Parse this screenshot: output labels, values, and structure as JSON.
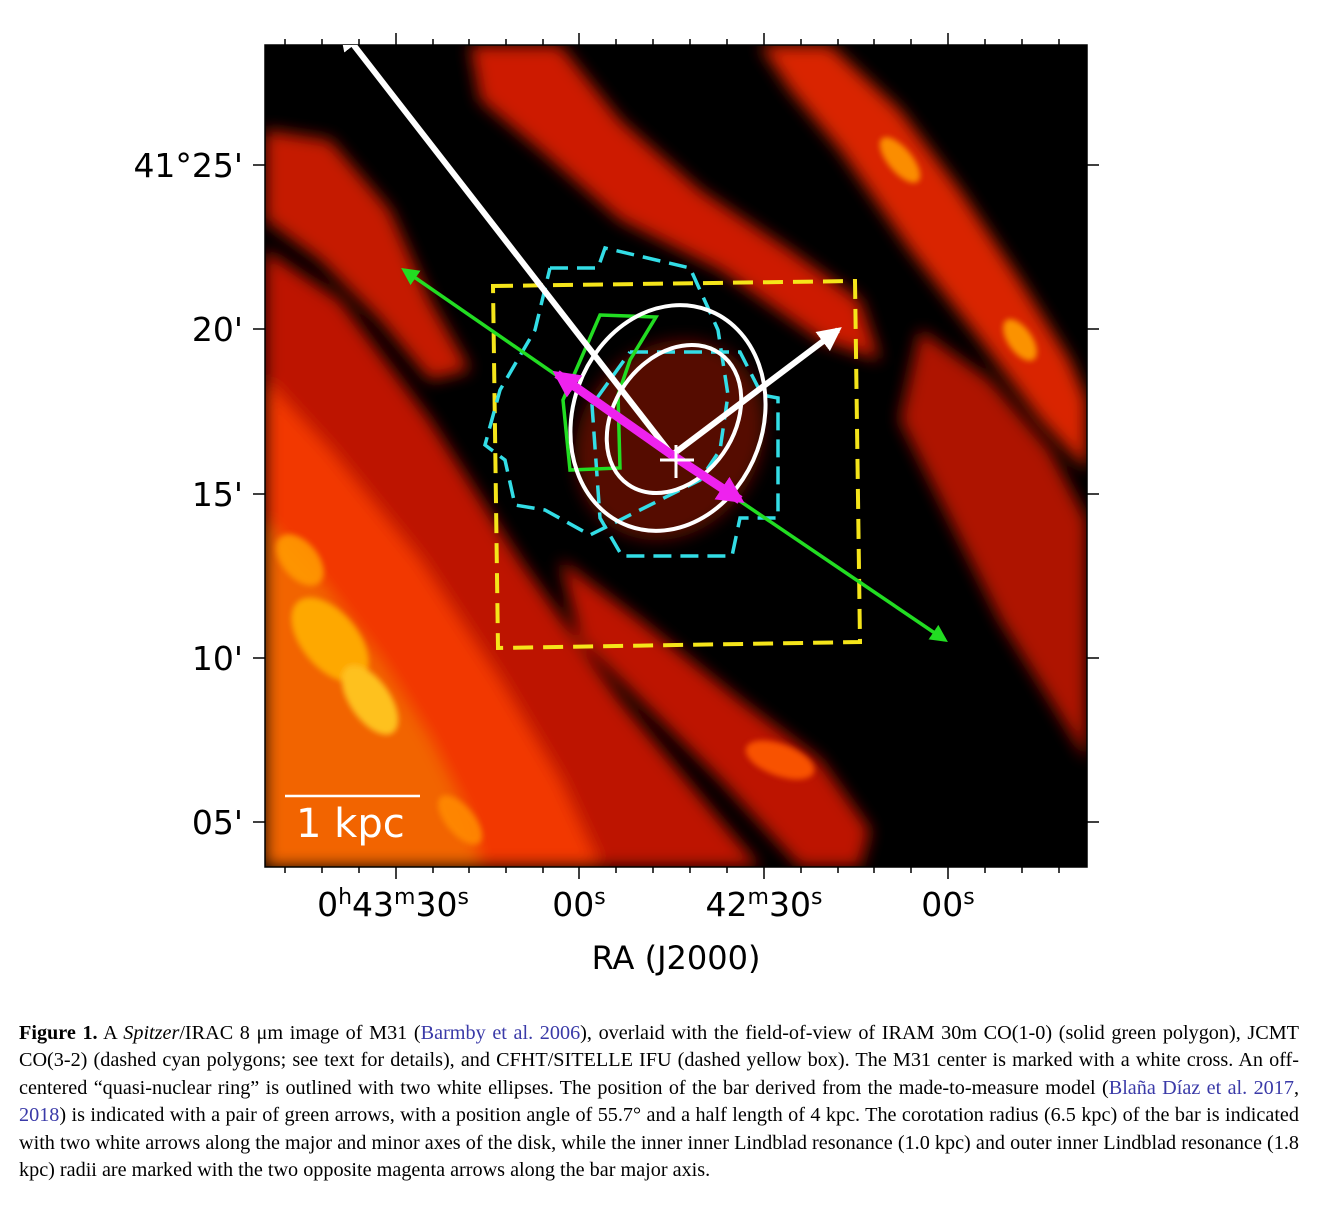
{
  "figure": {
    "dec_ticks": [
      "41°25'",
      "20'",
      "15'",
      "10'",
      "05'"
    ],
    "ra_ticks": [
      {
        "h": "0",
        "hs": "h",
        "m": "43",
        "ms": "m",
        "s": "30",
        "ss": "s"
      },
      {
        "s": "00",
        "ss": "s"
      },
      {
        "m": "42",
        "ms": "m",
        "s": "30",
        "ss": "s"
      },
      {
        "s": "00",
        "ss": "s"
      }
    ],
    "xlabel": "RA (J2000)",
    "scalebar_label": "1 kpc",
    "colors": {
      "background": "#000000",
      "emission": "#ff3a00",
      "co10": "#22dd22",
      "co32": "#33dde6",
      "sitelle": "#f5e51a",
      "ring": "#ffffff",
      "ilr": "#ee22ee"
    }
  },
  "caption": {
    "label": "Figure 1.",
    "t1": " A ",
    "spitzer": "Spitzer",
    "t2": "/IRAC 8 μm image of M31 (",
    "cite1": "Barmby et al. 2006",
    "t3": "), overlaid with the field-of-view of IRAM 30m CO(1-0) (solid green polygon), JCMT CO(3-2) (dashed cyan polygons; see text for details), and CFHT/SITELLE IFU (dashed yellow box). The M31 center is marked with a white cross. An off-centered “quasi-nuclear ring” is outlined with two white ellipses. The position of the bar derived from the made-to-measure model (",
    "cite2": "Blaña Díaz et al. 2017",
    "t4": ", ",
    "cite3": "2018",
    "t5": ") is indicated with a pair of green arrows, with a position angle of 55.7° and a half length of 4 kpc. The corotation radius (6.5 kpc) of the bar is indicated with two white arrows along the major and minor axes of the disk, while the inner inner Lindblad resonance (1.0 kpc) and outer inner Lindblad resonance (1.8 kpc) radii are marked with the two opposite magenta arrows along the bar major axis."
  }
}
